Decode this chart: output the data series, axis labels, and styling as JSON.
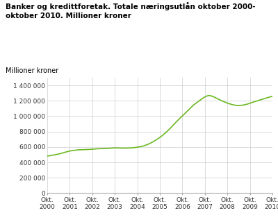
{
  "title": "Banker og kredittforetak. Totale næringsutlån oktober 2000-\noktober 2010. Millioner kroner",
  "ylabel": "Millioner kroner",
  "line_color": "#6ab820",
  "background_color": "#ffffff",
  "grid_color": "#cccccc",
  "ylim": [
    0,
    1500000
  ],
  "yticks": [
    0,
    200000,
    400000,
    600000,
    800000,
    1000000,
    1200000,
    1400000
  ],
  "ytick_labels": [
    "0",
    "200 000",
    "400 000",
    "600 000",
    "800 000",
    "1 000 000",
    "1 200 000",
    "1 400 000"
  ],
  "x_labels": [
    "Okt.\n2000",
    "Okt.\n2001",
    "Okt.\n2002",
    "Okt.\n2003",
    "Okt.\n2004",
    "Okt.\n2005",
    "Okt.\n2006",
    "Okt.\n2007",
    "Okt.\n2008",
    "Okt.\n2009",
    "Okt.\n2010"
  ],
  "values": [
    480000,
    485000,
    490000,
    494000,
    498000,
    503000,
    508000,
    514000,
    520000,
    528000,
    535000,
    541000,
    547000,
    551000,
    555000,
    558000,
    561000,
    563000,
    564000,
    565000,
    566000,
    567000,
    568000,
    569000,
    571000,
    573000,
    575000,
    577000,
    578000,
    579000,
    580000,
    581000,
    582000,
    583000,
    585000,
    587000,
    588000,
    588000,
    587000,
    586000,
    585000,
    585000,
    585000,
    586000,
    587000,
    589000,
    591000,
    594000,
    597000,
    601000,
    606000,
    612000,
    619000,
    628000,
    638000,
    650000,
    663000,
    677000,
    692000,
    708000,
    724000,
    742000,
    762000,
    783000,
    806000,
    829000,
    854000,
    880000,
    906000,
    932000,
    957000,
    981000,
    1004000,
    1026000,
    1050000,
    1074000,
    1098000,
    1122000,
    1145000,
    1164000,
    1182000,
    1200000,
    1218000,
    1236000,
    1250000,
    1262000,
    1268000,
    1266000,
    1258000,
    1248000,
    1236000,
    1224000,
    1212000,
    1200000,
    1190000,
    1180000,
    1170000,
    1162000,
    1155000,
    1148000,
    1143000,
    1140000,
    1138000,
    1139000,
    1143000,
    1148000,
    1153000,
    1160000,
    1168000,
    1176000,
    1184000,
    1192000,
    1200000,
    1208000,
    1216000,
    1223000,
    1230000,
    1238000,
    1245000,
    1252000,
    1258000
  ]
}
